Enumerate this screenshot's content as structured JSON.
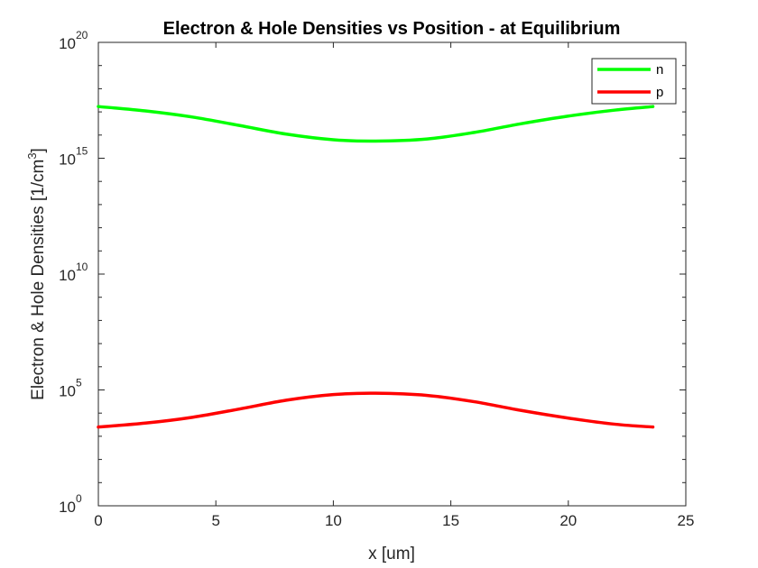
{
  "chart_data": {
    "type": "line",
    "title": "Electron & Hole Densities vs Position - at Equilibrium",
    "xlabel": "x [um]",
    "ylabel": "Electron & Hole Densities [1/cm",
    "ylabel_sup": "3",
    "ylabel_end": "]",
    "xlim": [
      0,
      25
    ],
    "ylim": [
      1,
      1e+20
    ],
    "yscale": "log",
    "xticks": [
      "0",
      "5",
      "10",
      "15",
      "20",
      "25"
    ],
    "yticks": [
      {
        "base": "10",
        "exp": "0"
      },
      {
        "base": "10",
        "exp": "5"
      },
      {
        "base": "10",
        "exp": "10"
      },
      {
        "base": "10",
        "exp": "15"
      },
      {
        "base": "10",
        "exp": "20"
      }
    ],
    "legend_position": "top-right",
    "grid": false,
    "series": [
      {
        "name": "n",
        "color": "#00ff00",
        "x": [
          0,
          2,
          4,
          6,
          8,
          10,
          11.8,
          14,
          16,
          18,
          20,
          22,
          23.6
        ],
        "y": [
          1.7e+17,
          1.1e+17,
          6e+16,
          2.6e+16,
          1.1e+16,
          6300000000000000.0,
          5500000000000000.0,
          6800000000000000.0,
          1.3e+16,
          3.1e+16,
          6.6e+16,
          1.2e+17,
          1.7e+17
        ]
      },
      {
        "name": "p",
        "color": "#ff0000",
        "x": [
          0,
          2,
          4,
          6,
          8,
          10,
          11.8,
          14,
          16,
          18,
          20,
          22,
          23.6
        ],
        "y": [
          2500.0,
          3700.0,
          6600.0,
          15000.0,
          36000.0,
          63000.0,
          72000.0,
          58000.0,
          31000.0,
          13000.0,
          6100.0,
          3300.0,
          2500.0
        ]
      }
    ]
  }
}
